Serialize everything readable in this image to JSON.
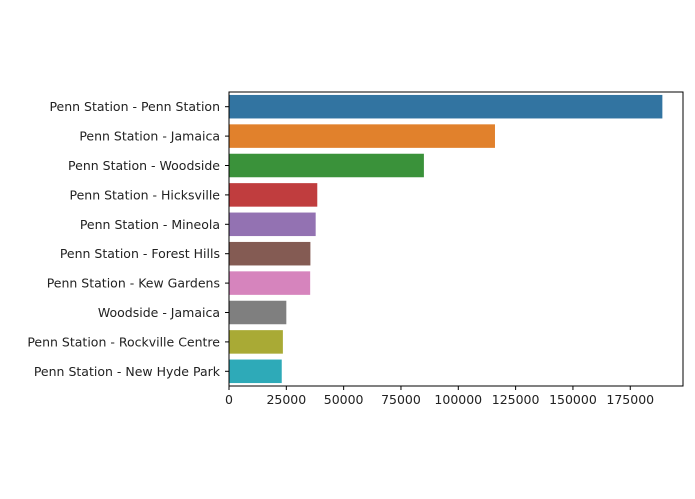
{
  "chart_data": {
    "type": "bar",
    "orientation": "horizontal",
    "title": "",
    "xlabel": "",
    "ylabel": "",
    "categories": [
      "Penn Station - Penn Station",
      "Penn Station - Jamaica",
      "Penn Station - Woodside",
      "Penn Station - Hicksville",
      "Penn Station - Mineola",
      "Penn Station - Forest Hills",
      "Penn Station - Kew Gardens",
      "Woodside - Jamaica",
      "Penn Station - Rockville Centre",
      "Penn Station - New Hyde Park"
    ],
    "values": [
      189000,
      116000,
      85000,
      38500,
      37800,
      35500,
      35400,
      25000,
      23500,
      23000
    ],
    "colors": [
      "#3274a1",
      "#e1812c",
      "#3a923a",
      "#c03d3e",
      "#9372b2",
      "#845b53",
      "#d684bd",
      "#7f7f7f",
      "#a9aa35",
      "#2eaab8"
    ],
    "xlim": [
      0,
      198000
    ],
    "xticks": [
      0,
      25000,
      50000,
      75000,
      100000,
      125000,
      150000,
      175000
    ],
    "grid": false,
    "legend": "none"
  }
}
